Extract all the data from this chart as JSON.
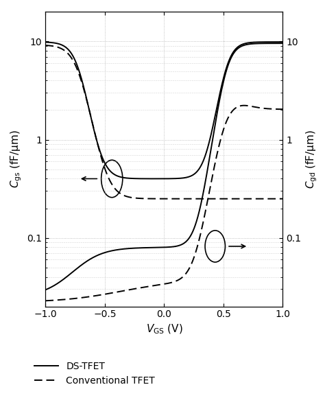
{
  "title": "",
  "xlabel": "$V_{\\mathrm{GS}}$ (V)",
  "ylabel_left": "$C_{\\mathrm{gs}}$ (fF/μm)",
  "ylabel_right": "$C_{\\mathrm{gd}}$ (fF/μm)",
  "xlim": [
    -1.0,
    1.0
  ],
  "ylim_log": [
    0.02,
    20
  ],
  "xticks": [
    -1.0,
    -0.5,
    0.0,
    0.5,
    1.0
  ],
  "yticks": [
    0.1,
    1,
    10
  ],
  "background_color": "#ffffff",
  "line_color": "#000000",
  "grid_color": "#b0b0b0",
  "legend_entries": [
    "DS-TFET",
    "Conventional TFET"
  ],
  "legend_styles": [
    "solid",
    "dashed"
  ],
  "figsize": [
    4.74,
    5.8
  ],
  "dpi": 100
}
